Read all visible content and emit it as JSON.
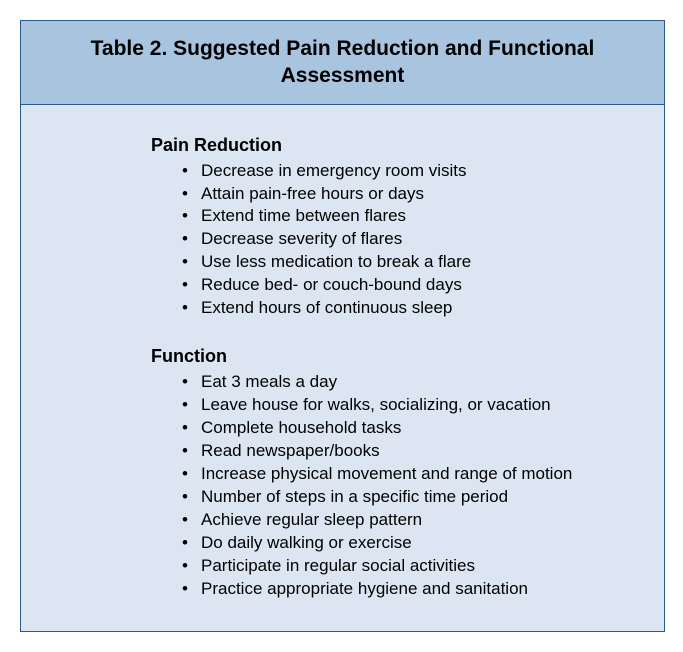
{
  "table": {
    "title": "Table 2. Suggested Pain Reduction and Functional Assessment",
    "header_bg": "#a8c4de",
    "body_bg": "#dce6f2",
    "border_color": "#2a5a8a",
    "title_fontsize": 21,
    "heading_fontsize": 18,
    "item_fontsize": 17,
    "text_color": "#000000",
    "sections": [
      {
        "heading": "Pain Reduction",
        "items": [
          "Decrease in emergency room visits",
          "Attain pain-free hours or days",
          "Extend time between flares",
          "Decrease severity of flares",
          "Use less medication to break a flare",
          "Reduce bed- or couch-bound days",
          "Extend hours of continuous sleep"
        ]
      },
      {
        "heading": "Function",
        "items": [
          "Eat 3 meals a day",
          "Leave house for walks, socializing, or vacation",
          "Complete household tasks",
          "Read newspaper/books",
          "Increase physical movement and range of motion",
          "Number of steps in a specific time period",
          "Achieve regular sleep pattern",
          "Do daily walking or exercise",
          "Participate in regular social activities",
          "Practice appropriate hygiene and sanitation"
        ]
      }
    ]
  }
}
